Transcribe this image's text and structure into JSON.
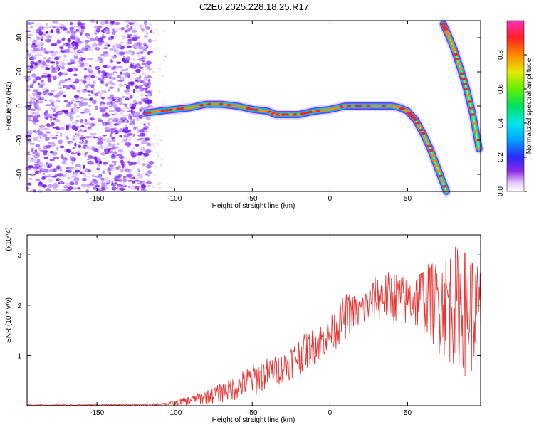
{
  "title": "C2E6.2025.228.18.25.R17",
  "chart_data": [
    {
      "type": "heatmap",
      "xlabel": "Height of straight line (km)",
      "ylabel": "Frequency (Hz)",
      "xlim": [
        -195,
        97
      ],
      "ylim": [
        -50,
        50
      ],
      "xticks": [
        -150,
        -100,
        -50,
        0,
        50
      ],
      "yticks": [
        -40,
        -20,
        0,
        20,
        40
      ],
      "grid": false,
      "colorbar": {
        "label": "Normalized spectral amplitude",
        "range": [
          0,
          1
        ],
        "ticks": [
          "0.0",
          "0.2",
          "0.4",
          "0.6",
          "0.8"
        ]
      },
      "noise_region_x": [
        -195,
        -115
      ],
      "main_trace": {
        "x": [
          -118,
          -110,
          -100,
          -90,
          -80,
          -70,
          -60,
          -50,
          -40,
          -35,
          -30,
          -20,
          -10,
          0,
          10,
          20,
          30,
          40,
          45,
          50,
          55,
          60,
          65,
          70,
          75
        ],
        "y": [
          -4,
          -3,
          -2,
          -1,
          1,
          1,
          0,
          -2,
          -3,
          -5,
          -5,
          -5,
          -3,
          -2,
          0,
          0,
          0,
          0,
          -1,
          -3,
          -8,
          -16,
          -26,
          -38,
          -50
        ]
      },
      "secondary_trace": {
        "x": [
          73,
          76,
          80,
          84,
          88,
          92,
          96
        ],
        "y": [
          48,
          42,
          33,
          22,
          10,
          -5,
          -25
        ]
      }
    },
    {
      "type": "line",
      "xlabel": "Height of straight line (km)",
      "ylabel": "SNR (10 * v/v)",
      "y_multiplier": "(x10^4)",
      "xlim": [
        -195,
        97
      ],
      "ylim": [
        0,
        3.4
      ],
      "xticks": [
        -150,
        -100,
        -50,
        0,
        50
      ],
      "yticks": [
        1,
        2,
        3
      ],
      "color": "#e8302e",
      "grid": false,
      "envelope": {
        "x": [
          -195,
          -130,
          -110,
          -100,
          -90,
          -80,
          -70,
          -60,
          -50,
          -40,
          -30,
          -20,
          -10,
          0,
          10,
          20,
          30,
          40,
          50,
          60,
          70,
          80,
          90,
          97
        ],
        "low": [
          0,
          0,
          0,
          0,
          0,
          0.02,
          0.05,
          0.1,
          0.15,
          0.3,
          0.45,
          0.6,
          0.8,
          1.0,
          1.3,
          1.5,
          1.6,
          1.6,
          1.5,
          1.4,
          1.0,
          0.7,
          0.5,
          0.6
        ],
        "high": [
          0.02,
          0.03,
          0.05,
          0.1,
          0.2,
          0.3,
          0.45,
          0.6,
          0.85,
          0.95,
          1.05,
          1.35,
          1.55,
          1.75,
          2.25,
          2.2,
          2.6,
          2.7,
          2.55,
          2.8,
          2.9,
          3.2,
          3.1,
          2.8
        ]
      }
    }
  ]
}
